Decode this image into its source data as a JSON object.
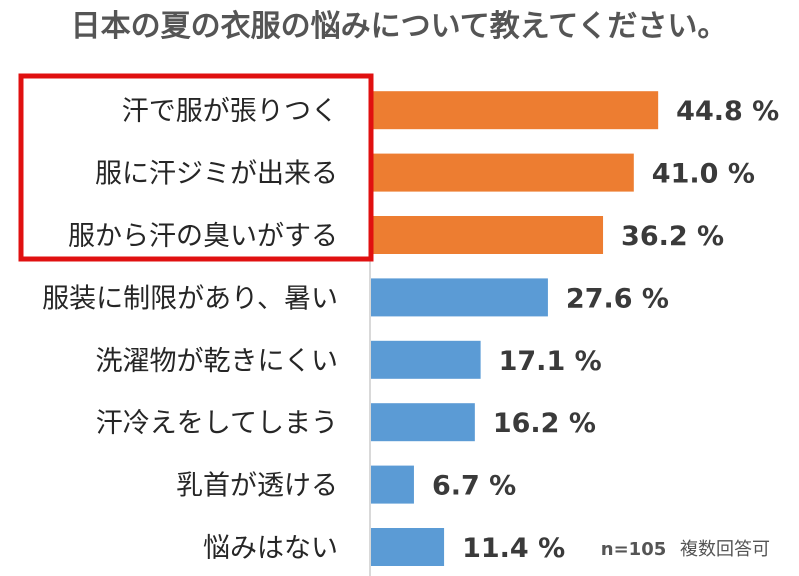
{
  "chart_data": {
    "type": "bar",
    "orientation": "horizontal",
    "title": "日本の夏の衣服の悩みについて教えてください。",
    "categories": [
      "汗で服が張りつく",
      "服に汗ジミが出来る",
      "服から汗の臭いがする",
      "服装に制限があり、暑い",
      "洗濯物が乾きにくい",
      "汗冷えをしてしまう",
      "乳首が透ける",
      "悩みはない"
    ],
    "values": [
      44.8,
      41.0,
      36.2,
      27.6,
      17.1,
      16.2,
      6.7,
      11.4
    ],
    "value_labels": [
      "44.8 %",
      "41.0 %",
      "36.2 %",
      "27.6 %",
      "17.1 %",
      "16.2 %",
      "6.7 %",
      "11.4 %"
    ],
    "highlighted": [
      true,
      true,
      true,
      false,
      false,
      false,
      false,
      false
    ],
    "colors": {
      "highlight": "#ED7D31",
      "normal": "#5B9BD5",
      "frame": "#E01010",
      "axis": "#D9D9D9"
    },
    "xlim": [
      0,
      50
    ],
    "xlabel": "",
    "ylabel": "",
    "grid": false,
    "note": {
      "sample": "n=105",
      "type": "複数回答可"
    }
  }
}
